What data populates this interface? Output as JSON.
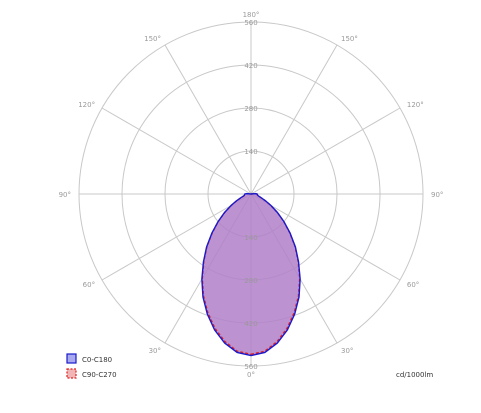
{
  "chart_data": {
    "type": "polar",
    "unit_label": "cd/1000lm",
    "radial_ticks": [
      "140",
      "280",
      "420",
      "560"
    ],
    "radial_tick_values": [
      140,
      280,
      420,
      560
    ],
    "r_max": 560,
    "angle_labels": [
      {
        "text": "180°",
        "angle": 180
      },
      {
        "text": "150°",
        "angle": 150
      },
      {
        "text": "150°",
        "angle": -150
      },
      {
        "text": "120°",
        "angle": 120
      },
      {
        "text": "120°",
        "angle": -120
      },
      {
        "text": "90°",
        "angle": 90
      },
      {
        "text": "90°",
        "angle": -90
      },
      {
        "text": "60°",
        "angle": 60
      },
      {
        "text": "60°",
        "angle": -60
      },
      {
        "text": "30°",
        "angle": 30
      },
      {
        "text": "30°",
        "angle": -30
      },
      {
        "text": "0°",
        "angle": 0
      }
    ],
    "legend_position": "bottom-left",
    "series": [
      {
        "name": "C0-C180",
        "color": "#1a1acc",
        "fill": "#b07fc8",
        "line_style": "solid",
        "angles": [
          0,
          5,
          10,
          15,
          20,
          25,
          30,
          35,
          40,
          45,
          50,
          55,
          60,
          65,
          70,
          75,
          80,
          85,
          90,
          95,
          100
        ],
        "values": [
          526,
          518,
          493,
          458,
          416,
          370,
          320,
          270,
          225,
          180,
          140,
          105,
          75,
          52,
          35,
          25,
          22,
          21,
          20,
          14,
          0
        ]
      },
      {
        "name": "C90-C270",
        "color": "#e02020",
        "fill": "#b07fc8",
        "line_style": "dashed",
        "angles": [
          0,
          5,
          10,
          15,
          20,
          25,
          30,
          35,
          40,
          45,
          50,
          55,
          60,
          65,
          70,
          75,
          80,
          85,
          90,
          95,
          100
        ],
        "values": [
          522,
          514,
          488,
          453,
          411,
          366,
          317,
          268,
          223,
          178,
          139,
          104,
          74,
          51,
          34,
          24,
          21,
          20,
          19,
          13,
          0
        ]
      }
    ]
  }
}
